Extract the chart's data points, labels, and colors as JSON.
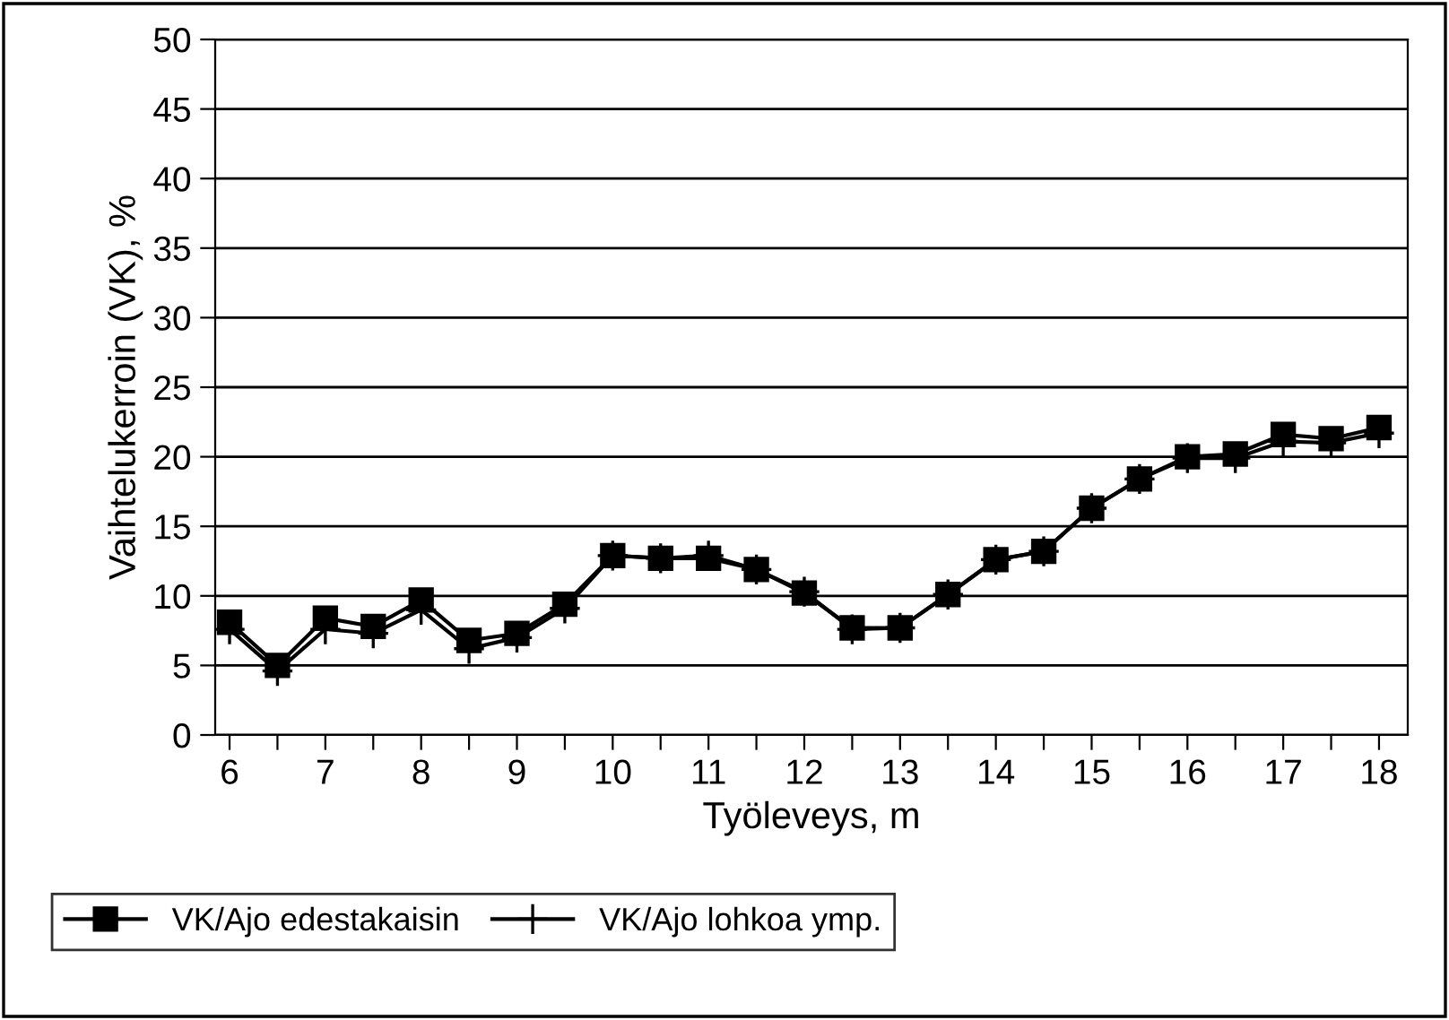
{
  "chart_data": {
    "type": "line",
    "xlabel": "Työleveys, m",
    "ylabel": "Vaihtelukerroin (VK), %",
    "x": [
      6,
      6.5,
      7,
      7.5,
      8,
      8.5,
      9,
      9.5,
      10,
      10.5,
      11,
      11.5,
      12,
      12.5,
      13,
      13.5,
      14,
      14.5,
      15,
      15.5,
      16,
      16.5,
      17,
      17.5,
      18
    ],
    "series": [
      {
        "name": "VK/Ajo edestakaisin",
        "color": "#000000",
        "marker": "square",
        "values": [
          8.1,
          5.0,
          8.4,
          7.8,
          9.7,
          6.8,
          7.3,
          9.4,
          12.9,
          12.7,
          12.7,
          11.9,
          10.2,
          7.7,
          7.7,
          10.1,
          12.6,
          13.2,
          16.3,
          18.4,
          20.0,
          20.2,
          21.6,
          21.3,
          22.1
        ]
      },
      {
        "name": "VK/Ajo lohkoa ymp.",
        "color": "#000000",
        "marker": "cross",
        "values": [
          7.6,
          4.6,
          7.6,
          7.3,
          9.0,
          6.2,
          7.0,
          9.1,
          12.9,
          12.7,
          12.9,
          11.9,
          10.3,
          7.6,
          7.7,
          10.1,
          12.6,
          13.2,
          16.3,
          18.4,
          19.9,
          19.9,
          21.1,
          21.0,
          21.7
        ]
      }
    ],
    "xlim": [
      5.85,
      18.3
    ],
    "ylim": [
      0,
      50
    ],
    "xticks": [
      6,
      {
        "value": 6.5,
        "label": null
      },
      7,
      {
        "value": 7.5,
        "label": null
      },
      8,
      {
        "value": 8.5,
        "label": null
      },
      9,
      {
        "value": 9.5,
        "label": null
      },
      10,
      {
        "value": 10.5,
        "label": null
      },
      11,
      {
        "value": 11.5,
        "label": null
      },
      12,
      {
        "value": 12.5,
        "label": null
      },
      13,
      {
        "value": 13.5,
        "label": null
      },
      14,
      {
        "value": 14.5,
        "label": null
      },
      15,
      {
        "value": 15.5,
        "label": null
      },
      16,
      {
        "value": 16.5,
        "label": null
      },
      17,
      {
        "value": 17.5,
        "label": null
      },
      18
    ],
    "yticks": [
      0,
      5,
      10,
      15,
      20,
      25,
      30,
      35,
      40,
      45,
      50
    ],
    "grid": "y",
    "legend": "bottom left"
  }
}
